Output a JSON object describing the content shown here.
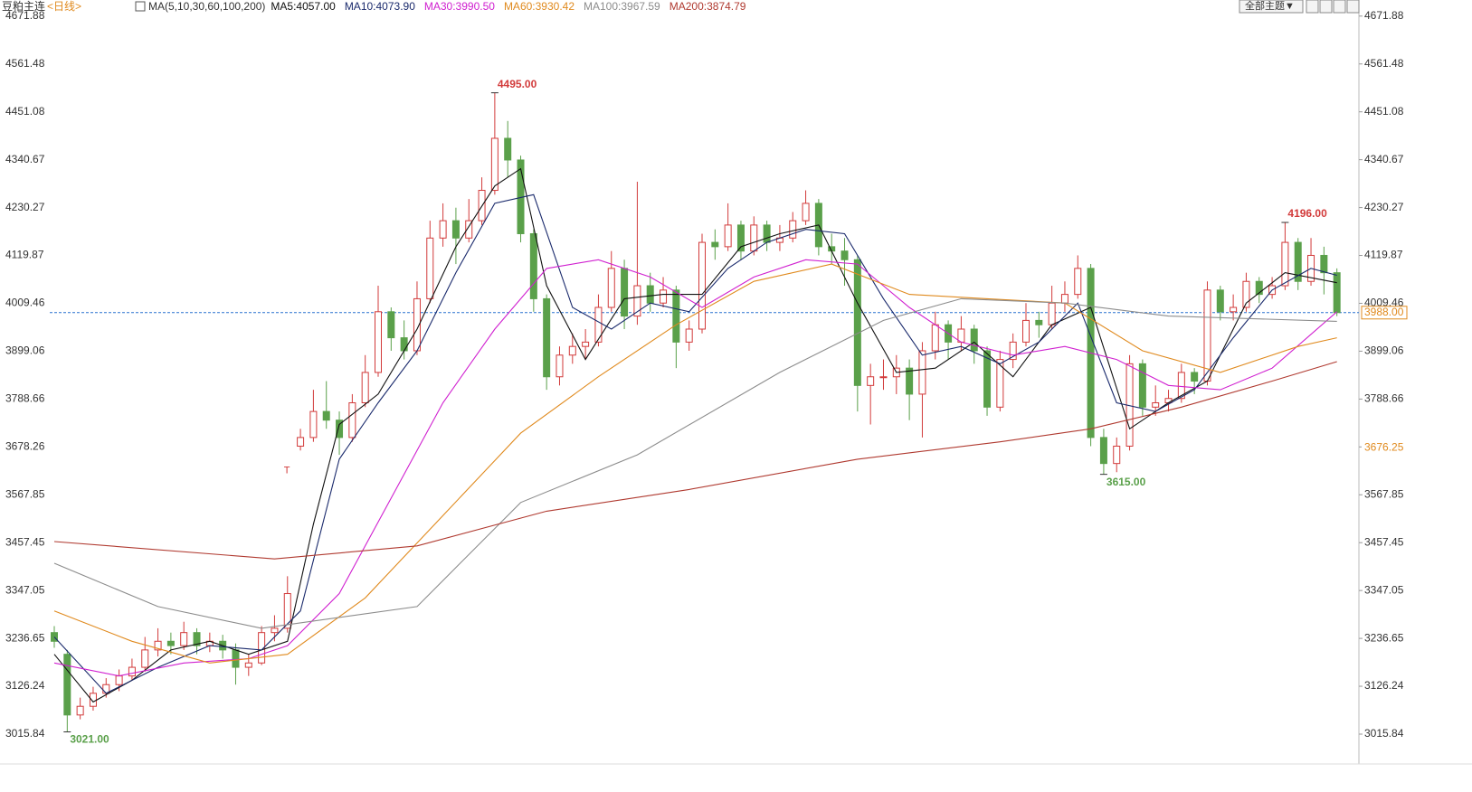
{
  "chart_data": {
    "type": "candlestick",
    "title": "豆粕主连",
    "period": "<日线>",
    "indicator": "MA(5,10,30,60,100,200)",
    "theme_button": "全部主题▼",
    "ylim": [
      2947,
      4709
    ],
    "yticks": [
      4671.88,
      4561.48,
      4451.08,
      4340.67,
      4230.27,
      4119.87,
      4009.46,
      3899.06,
      3788.66,
      3678.26,
      3567.85,
      3457.45,
      3347.05,
      3236.65,
      3126.24,
      3015.84
    ],
    "up_color": "#d23a3a",
    "down_color": "#5aa04a",
    "ohlc": [
      [
        3250,
        3265,
        3215,
        3230
      ],
      [
        3200,
        3210,
        3021,
        3060
      ],
      [
        3060,
        3100,
        3050,
        3080
      ],
      [
        3080,
        3125,
        3070,
        3110
      ],
      [
        3110,
        3145,
        3100,
        3130
      ],
      [
        3130,
        3165,
        3115,
        3150
      ],
      [
        3150,
        3190,
        3140,
        3170
      ],
      [
        3170,
        3240,
        3160,
        3210
      ],
      [
        3210,
        3260,
        3195,
        3230
      ],
      [
        3230,
        3250,
        3200,
        3220
      ],
      [
        3220,
        3275,
        3210,
        3250
      ],
      [
        3250,
        3260,
        3200,
        3220
      ],
      [
        3220,
        3250,
        3205,
        3230
      ],
      [
        3230,
        3245,
        3190,
        3210
      ],
      [
        3210,
        3225,
        3130,
        3170
      ],
      [
        3170,
        3200,
        3150,
        3180
      ],
      [
        3180,
        3265,
        3175,
        3250
      ],
      [
        3250,
        3290,
        3230,
        3260
      ],
      [
        3260,
        3380,
        3250,
        3340
      ],
      [
        3680,
        3720,
        3670,
        3700
      ],
      [
        3700,
        3810,
        3690,
        3760
      ],
      [
        3760,
        3830,
        3720,
        3740
      ],
      [
        3740,
        3760,
        3660,
        3700
      ],
      [
        3700,
        3800,
        3690,
        3780
      ],
      [
        3780,
        3890,
        3770,
        3850
      ],
      [
        3850,
        4050,
        3840,
        3990
      ],
      [
        3990,
        4000,
        3900,
        3930
      ],
      [
        3930,
        3970,
        3880,
        3900
      ],
      [
        3900,
        4060,
        3890,
        4020
      ],
      [
        4020,
        4200,
        4010,
        4160
      ],
      [
        4160,
        4240,
        4140,
        4200
      ],
      [
        4200,
        4230,
        4100,
        4160
      ],
      [
        4160,
        4250,
        4150,
        4200
      ],
      [
        4200,
        4300,
        4190,
        4270
      ],
      [
        4270,
        4495,
        4260,
        4390
      ],
      [
        4390,
        4430,
        4300,
        4340
      ],
      [
        4340,
        4350,
        4150,
        4170
      ],
      [
        4170,
        4180,
        3990,
        4020
      ],
      [
        4020,
        4030,
        3810,
        3840
      ],
      [
        3840,
        3910,
        3820,
        3890
      ],
      [
        3890,
        3940,
        3870,
        3910
      ],
      [
        3910,
        3950,
        3880,
        3920
      ],
      [
        3920,
        4030,
        3910,
        4000
      ],
      [
        4000,
        4130,
        3990,
        4090
      ],
      [
        4090,
        4110,
        3950,
        3980
      ],
      [
        3980,
        4290,
        3960,
        4050
      ],
      [
        4050,
        4080,
        3990,
        4010
      ],
      [
        4010,
        4070,
        4000,
        4040
      ],
      [
        4040,
        4050,
        3860,
        3920
      ],
      [
        3920,
        3970,
        3900,
        3950
      ],
      [
        3950,
        4170,
        3940,
        4150
      ],
      [
        4150,
        4180,
        4110,
        4140
      ],
      [
        4140,
        4240,
        4130,
        4190
      ],
      [
        4190,
        4200,
        4110,
        4130
      ],
      [
        4130,
        4210,
        4120,
        4190
      ],
      [
        4190,
        4200,
        4130,
        4150
      ],
      [
        4150,
        4190,
        4130,
        4160
      ],
      [
        4160,
        4220,
        4150,
        4200
      ],
      [
        4200,
        4270,
        4190,
        4240
      ],
      [
        4240,
        4250,
        4120,
        4140
      ],
      [
        4140,
        4170,
        4100,
        4130
      ],
      [
        4130,
        4160,
        4050,
        4110
      ],
      [
        4110,
        4120,
        3760,
        3820
      ],
      [
        3820,
        3870,
        3730,
        3840
      ],
      [
        3840,
        3880,
        3810,
        3840
      ],
      [
        3840,
        3890,
        3800,
        3860
      ],
      [
        3860,
        3880,
        3740,
        3800
      ],
      [
        3800,
        3920,
        3700,
        3900
      ],
      [
        3900,
        3990,
        3880,
        3960
      ],
      [
        3960,
        3970,
        3880,
        3920
      ],
      [
        3920,
        3980,
        3900,
        3950
      ],
      [
        3950,
        3960,
        3870,
        3900
      ],
      [
        3900,
        3910,
        3750,
        3770
      ],
      [
        3770,
        3900,
        3760,
        3880
      ],
      [
        3880,
        3940,
        3860,
        3920
      ],
      [
        3920,
        4010,
        3910,
        3970
      ],
      [
        3970,
        3990,
        3930,
        3960
      ],
      [
        3960,
        4050,
        3950,
        4010
      ],
      [
        4010,
        4060,
        3990,
        4030
      ],
      [
        4030,
        4120,
        4020,
        4090
      ],
      [
        4090,
        4100,
        3680,
        3700
      ],
      [
        3700,
        3720,
        3615,
        3640
      ],
      [
        3640,
        3700,
        3620,
        3680
      ],
      [
        3680,
        3890,
        3670,
        3870
      ],
      [
        3870,
        3880,
        3750,
        3770
      ],
      [
        3770,
        3820,
        3750,
        3780
      ],
      [
        3780,
        3810,
        3760,
        3790
      ],
      [
        3790,
        3870,
        3780,
        3850
      ],
      [
        3850,
        3860,
        3800,
        3830
      ],
      [
        3830,
        4060,
        3820,
        4040
      ],
      [
        4040,
        4050,
        3970,
        3990
      ],
      [
        3990,
        4030,
        3970,
        4000
      ],
      [
        4000,
        4080,
        3990,
        4060
      ],
      [
        4060,
        4070,
        4010,
        4030
      ],
      [
        4030,
        4070,
        4020,
        4050
      ],
      [
        4050,
        4196,
        4040,
        4150
      ],
      [
        4150,
        4160,
        4040,
        4060
      ],
      [
        4060,
        4160,
        4050,
        4120
      ],
      [
        4120,
        4140,
        4030,
        4080
      ],
      [
        4080,
        4090,
        3980,
        3988
      ]
    ],
    "series": [
      {
        "name": "MA5:4057.00",
        "color": "#111111",
        "x": [
          0,
          3,
          6,
          9,
          12,
          15,
          18,
          20,
          22,
          25,
          28,
          31,
          34,
          36,
          38,
          41,
          44,
          47,
          50,
          53,
          56,
          59,
          62,
          65,
          68,
          71,
          74,
          77,
          80,
          83,
          86,
          89,
          92,
          95,
          99
        ],
        "values": [
          3200,
          3090,
          3140,
          3210,
          3230,
          3200,
          3230,
          3500,
          3730,
          3800,
          3950,
          4140,
          4280,
          4320,
          4050,
          3880,
          4020,
          4030,
          4030,
          4140,
          4170,
          4190,
          4010,
          3850,
          3860,
          3920,
          3840,
          3960,
          4000,
          3720,
          3780,
          3830,
          4010,
          4080,
          4057
        ]
      },
      {
        "name": "MA10:4073.90",
        "color": "#1a2a6c",
        "x": [
          0,
          4,
          8,
          12,
          16,
          19,
          22,
          25,
          28,
          31,
          34,
          37,
          40,
          43,
          46,
          49,
          52,
          55,
          58,
          61,
          64,
          67,
          70,
          73,
          76,
          79,
          82,
          85,
          88,
          91,
          94,
          97,
          99
        ],
        "values": [
          3240,
          3110,
          3170,
          3220,
          3210,
          3300,
          3650,
          3780,
          3900,
          4080,
          4240,
          4260,
          4000,
          3950,
          4010,
          3990,
          4090,
          4150,
          4180,
          4170,
          4020,
          3890,
          3910,
          3870,
          3920,
          4010,
          3780,
          3760,
          3810,
          3930,
          4040,
          4090,
          4074
        ]
      },
      {
        "name": "MA30:3990.50",
        "color": "#d020d0",
        "x": [
          0,
          5,
          10,
          15,
          18,
          22,
          26,
          30,
          34,
          38,
          42,
          46,
          50,
          54,
          58,
          62,
          66,
          70,
          74,
          78,
          82,
          86,
          90,
          94,
          99
        ],
        "values": [
          3180,
          3150,
          3180,
          3190,
          3220,
          3340,
          3560,
          3780,
          3950,
          4090,
          4110,
          4070,
          4000,
          4070,
          4110,
          4100,
          4000,
          3920,
          3890,
          3910,
          3880,
          3820,
          3810,
          3860,
          3990
        ]
      },
      {
        "name": "MA60:3930.42",
        "color": "#e08a1e",
        "x": [
          0,
          6,
          12,
          18,
          24,
          30,
          36,
          42,
          48,
          54,
          60,
          66,
          72,
          78,
          84,
          90,
          96,
          99
        ],
        "values": [
          3300,
          3230,
          3180,
          3200,
          3330,
          3520,
          3710,
          3840,
          3960,
          4060,
          4100,
          4030,
          4020,
          4010,
          3900,
          3850,
          3910,
          3930
        ]
      },
      {
        "name": "MA100:3967.59",
        "color": "#8c8c8c",
        "x": [
          0,
          8,
          16,
          28,
          36,
          45,
          56,
          64,
          70,
          78,
          86,
          99
        ],
        "values": [
          3410,
          3310,
          3260,
          3310,
          3550,
          3660,
          3850,
          3970,
          4020,
          4010,
          3980,
          3968
        ]
      },
      {
        "name": "MA200:3874.79",
        "color": "#b03a30",
        "x": [
          0,
          17,
          28,
          38,
          49,
          62,
          73,
          80,
          87,
          94,
          99
        ],
        "values": [
          3460,
          3420,
          3450,
          3530,
          3580,
          3650,
          3690,
          3720,
          3770,
          3830,
          3875
        ]
      }
    ],
    "annotations": [
      {
        "x": 34,
        "value": 4495,
        "label": "4495.00",
        "color": "#d23a3a"
      },
      {
        "x": 1,
        "value": 3021,
        "label": "3021.00",
        "color": "#5aa04a"
      },
      {
        "x": 95,
        "value": 4196,
        "label": "4196.00",
        "color": "#d23a3a"
      },
      {
        "x": 81,
        "value": 3615,
        "label": "3615.00",
        "color": "#5aa04a"
      }
    ],
    "markers": [
      {
        "x": 18,
        "value": 3623,
        "label": "T",
        "color": "#d23a3a"
      }
    ],
    "price_line": {
      "value": 3988,
      "label": "3988.00",
      "color": "#2a72d0"
    },
    "right_labels": [
      {
        "value": 3676.25,
        "label": "3676.25",
        "color": "#e08a1e"
      }
    ]
  }
}
